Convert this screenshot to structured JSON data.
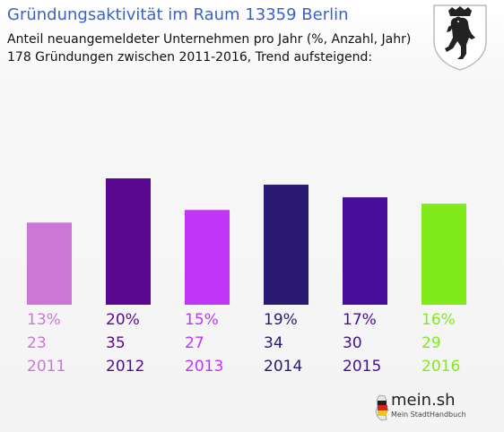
{
  "header": {
    "title": "Gründungsaktivität im Raum 13359 Berlin",
    "subtitle_line1": "Anteil neuangemeldeter Unternehmen pro Jahr (%, Anzahl, Jahr)",
    "subtitle_line2": "178 Gründungen zwischen 2011-2016, Trend aufsteigend:"
  },
  "crest": {
    "icon": "berlin-bear-crest-icon"
  },
  "branding": {
    "logo_text": "mein.sh",
    "logo_subtitle": "Mein StadtHandbuch",
    "icon": "germany-map-icon"
  },
  "chart_data": {
    "type": "bar",
    "categories": [
      "2011",
      "2012",
      "2013",
      "2014",
      "2015",
      "2016"
    ],
    "values": [
      13,
      20,
      15,
      19,
      17,
      16
    ],
    "counts": [
      23,
      35,
      27,
      34,
      30,
      29
    ],
    "percent_labels": [
      "13%",
      "20%",
      "15%",
      "19%",
      "17%",
      "16%"
    ],
    "count_labels": [
      "23",
      "35",
      "27",
      "34",
      "30",
      "29"
    ],
    "colors": [
      "#cc77d8",
      "#5a0891",
      "#c135f7",
      "#2b1a73",
      "#460e9a",
      "#80ea1a"
    ],
    "title": "Gründungsaktivität im Raum 13359 Berlin",
    "xlabel": "",
    "ylabel": "",
    "ylim": [
      0,
      20
    ],
    "grid": false,
    "legend": "none"
  }
}
